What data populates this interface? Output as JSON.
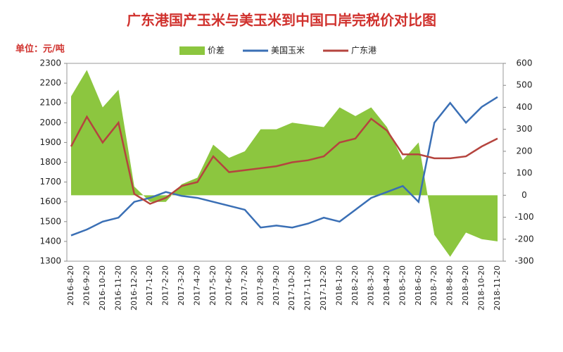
{
  "chart_data": {
    "type": "line",
    "title": "广东港国产玉米与美玉米到中国口岸完税价对比图",
    "unit_label": "单位：元/吨",
    "categories": [
      "2016-8-20",
      "2016-9-20",
      "2016-10-20",
      "2016-11-20",
      "2016-12-20",
      "2017-1-20",
      "2017-2-20",
      "2017-3-20",
      "2017-4-20",
      "2017-5-20",
      "2017-6-20",
      "2017-7-20",
      "2017-8-20",
      "2017-9-20",
      "2017-10-20",
      "2017-11-20",
      "2017-12-20",
      "2018-1-20",
      "2018-2-20",
      "2018-3-20",
      "2018-4-20",
      "2018-5-20",
      "2018-6-20",
      "2018-7-20",
      "2018-8-20",
      "2018-9-20",
      "2018-10-20",
      "2018-11-20"
    ],
    "series": [
      {
        "name": "价差",
        "color": "#8cc63f",
        "kind": "area",
        "axis": "y2",
        "values": [
          450,
          570,
          400,
          480,
          40,
          -30,
          -30,
          50,
          80,
          230,
          170,
          200,
          300,
          300,
          330,
          320,
          310,
          400,
          360,
          400,
          310,
          160,
          240,
          -180,
          -280,
          -170,
          -200,
          -210
        ]
      },
      {
        "name": "美国玉米",
        "color": "#3a6fb5",
        "kind": "line",
        "values": [
          1430,
          1460,
          1500,
          1520,
          1600,
          1620,
          1650,
          1630,
          1620,
          1600,
          1580,
          1560,
          1470,
          1480,
          1470,
          1490,
          1520,
          1500,
          1560,
          1620,
          1650,
          1680,
          1600,
          2000,
          2100,
          2000,
          2080,
          2130
        ]
      },
      {
        "name": "广东港",
        "color": "#b5443e",
        "kind": "line",
        "values": [
          1880,
          2030,
          1900,
          2000,
          1640,
          1590,
          1620,
          1680,
          1700,
          1830,
          1750,
          1760,
          1770,
          1780,
          1800,
          1810,
          1830,
          1900,
          1920,
          2020,
          1960,
          1840,
          1840,
          1820,
          1820,
          1830,
          1880,
          1920
        ]
      }
    ],
    "ylim": [
      1300,
      2300
    ],
    "yticks": [
      1300,
      1400,
      1500,
      1600,
      1700,
      1800,
      1900,
      2000,
      2100,
      2200,
      2300
    ],
    "y2lim": [
      -300,
      600
    ],
    "y2ticks": [
      -300,
      -200,
      -100,
      0,
      100,
      200,
      300,
      400,
      500,
      600
    ],
    "grid": false
  }
}
